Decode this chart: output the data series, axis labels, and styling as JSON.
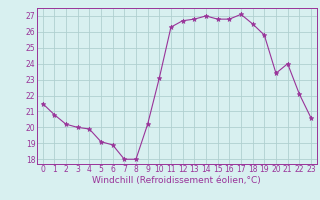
{
  "x": [
    0,
    1,
    2,
    3,
    4,
    5,
    6,
    7,
    8,
    9,
    10,
    11,
    12,
    13,
    14,
    15,
    16,
    17,
    18,
    19,
    20,
    21,
    22,
    23
  ],
  "y": [
    21.5,
    20.8,
    20.2,
    20.0,
    19.9,
    19.1,
    18.9,
    18.0,
    18.0,
    20.2,
    23.1,
    26.3,
    26.7,
    26.8,
    27.0,
    26.8,
    26.8,
    27.1,
    26.5,
    25.8,
    23.4,
    24.0,
    22.1,
    20.6
  ],
  "line_color": "#993399",
  "marker": "*",
  "marker_size": 3.5,
  "bg_color": "#d8f0f0",
  "grid_color": "#b0d0d0",
  "xlabel": "Windchill (Refroidissement éolien,°C)",
  "xlabel_color": "#993399",
  "xlabel_fontsize": 6.5,
  "tick_color": "#993399",
  "tick_fontsize": 5.5,
  "ylim_min": 17.7,
  "ylim_max": 27.5,
  "yticks": [
    18,
    19,
    20,
    21,
    22,
    23,
    24,
    25,
    26,
    27
  ],
  "xticks": [
    0,
    1,
    2,
    3,
    4,
    5,
    6,
    7,
    8,
    9,
    10,
    11,
    12,
    13,
    14,
    15,
    16,
    17,
    18,
    19,
    20,
    21,
    22,
    23
  ],
  "xlim_min": -0.5,
  "xlim_max": 23.5
}
